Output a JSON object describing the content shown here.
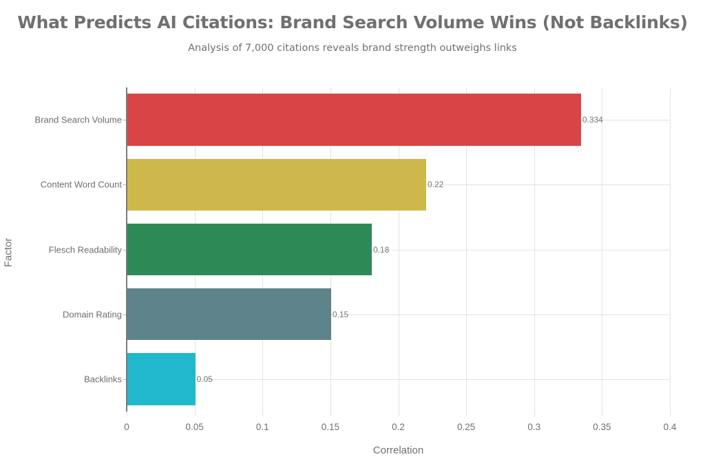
{
  "header": {
    "title": "What Predicts AI Citations: Brand Search Volume Wins (Not Backlinks)",
    "subtitle": "Analysis of 7,000 citations reveals brand strength outweighs links"
  },
  "axes": {
    "x_title": "Correlation",
    "y_title": "Factor",
    "x_ticks": [
      "0",
      "0.05",
      "0.1",
      "0.15",
      "0.2",
      "0.25",
      "0.3",
      "0.35",
      "0.4"
    ]
  },
  "chart_data": {
    "type": "bar",
    "orientation": "horizontal",
    "title": "What Predicts AI Citations: Brand Search Volume Wins (Not Backlinks)",
    "subtitle": "Analysis of 7,000 citations reveals brand strength outweighs links",
    "xlabel": "Correlation",
    "ylabel": "Factor",
    "xlim": [
      0,
      0.4
    ],
    "x_ticks": [
      0,
      0.05,
      0.1,
      0.15,
      0.2,
      0.25,
      0.3,
      0.35,
      0.4
    ],
    "grid": true,
    "legend": "none",
    "categories": [
      "Brand Search Volume",
      "Content Word Count",
      "Flesch Readability",
      "Domain Rating",
      "Backlinks"
    ],
    "values": [
      0.334,
      0.22,
      0.18,
      0.15,
      0.05
    ],
    "value_labels": [
      "0.334",
      "0.22",
      "0.18",
      "0.15",
      "0.05"
    ],
    "colors": [
      "#d94546",
      "#cfb84b",
      "#2d8a57",
      "#5e838a",
      "#21b7cc"
    ]
  }
}
